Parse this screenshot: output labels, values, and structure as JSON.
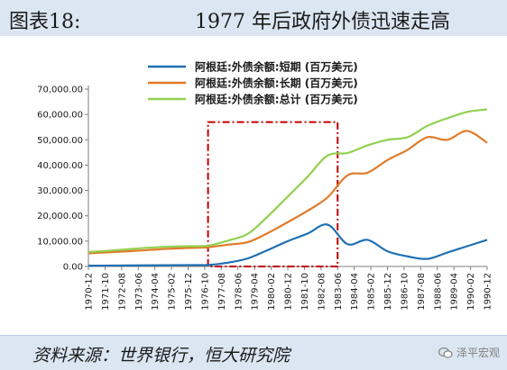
{
  "title": {
    "label": "图表18:",
    "text": "1977 年后政府外债迅速走高"
  },
  "source": "资料来源：世界银行，恒大研究院",
  "watermark": "泽平宏观",
  "chart_data": {
    "type": "line",
    "title": "1977 年后政府外债迅速走高",
    "ylim": [
      0,
      70000
    ],
    "yticks": [
      "0.00",
      "10,000.00",
      "20,000.00",
      "30,000.00",
      "40,000.00",
      "50,000.00",
      "60,000.00",
      "70,000.00"
    ],
    "ytick_values": [
      0,
      10000,
      20000,
      30000,
      40000,
      50000,
      60000,
      70000
    ],
    "x": [
      "1970-12",
      "1971-12",
      "1972-12",
      "1973-12",
      "1974-12",
      "1975-12",
      "1976-12",
      "1977-12",
      "1978-12",
      "1979-12",
      "1980-12",
      "1981-12",
      "1982-12",
      "1983-12",
      "1984-12",
      "1985-12",
      "1986-12",
      "1987-12",
      "1988-12",
      "1989-12",
      "1990-12"
    ],
    "xticks": [
      "1970-12",
      "1971-10",
      "1972-08",
      "1973-06",
      "1974-04",
      "1975-02",
      "1975-12",
      "1976-10",
      "1977-08",
      "1978-06",
      "1979-04",
      "1980-02",
      "1980-12",
      "1981-10",
      "1982-08",
      "1983-06",
      "1984-04",
      "1985-02",
      "1985-12",
      "1986-10",
      "1987-08",
      "1988-06",
      "1989-04",
      "1990-02",
      "1990-12"
    ],
    "grid": false,
    "legend_position": "top-center",
    "series": [
      {
        "name": "阿根廷:外债余额:短期 (百万美元)",
        "color": "#1f6fb2",
        "values": [
          300,
          350,
          400,
          450,
          500,
          550,
          600,
          1500,
          3200,
          6500,
          10000,
          13000,
          16500,
          8800,
          10500,
          6000,
          4000,
          3000,
          5500,
          8000,
          10500
        ]
      },
      {
        "name": "阿根廷:外债余额:长期 (百万美元)",
        "color": "#e07b2a",
        "values": [
          5200,
          5600,
          6000,
          6500,
          7000,
          7300,
          7600,
          8600,
          9600,
          13200,
          17500,
          22000,
          27300,
          36000,
          37000,
          42000,
          46000,
          51000,
          50000,
          53500,
          48800
        ]
      },
      {
        "name": "阿根廷:外债余额:总计 (百万美元)",
        "color": "#92d050",
        "values": [
          5700,
          6200,
          6800,
          7400,
          7800,
          8000,
          8200,
          10200,
          12900,
          19800,
          27600,
          35500,
          43800,
          44800,
          47800,
          50000,
          51000,
          55500,
          58500,
          61000,
          62000
        ]
      }
    ],
    "annotation": {
      "type": "dashed-rectangle",
      "x_start": "1976-12",
      "x_end": "1983-06",
      "y_start": 0,
      "y_end": 57000,
      "color": "#c00000"
    }
  }
}
